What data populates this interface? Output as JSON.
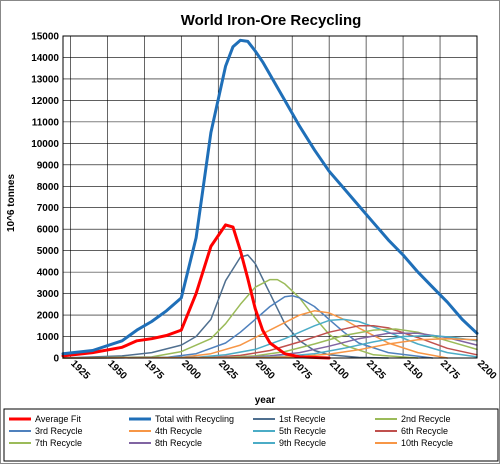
{
  "chart_data": {
    "type": "line",
    "title": "World Iron-Ore Recycling",
    "xlabel": "year",
    "ylabel": "10^6 tonnes",
    "xlim": [
      1920,
      2200
    ],
    "ylim": [
      0,
      15000
    ],
    "x_ticks": [
      1925,
      1950,
      1975,
      2000,
      2025,
      2050,
      2075,
      2100,
      2125,
      2150,
      2175,
      2200
    ],
    "y_ticks": [
      0,
      1000,
      2000,
      3000,
      4000,
      5000,
      6000,
      7000,
      8000,
      9000,
      10000,
      11000,
      12000,
      13000,
      14000,
      15000
    ],
    "grid": true,
    "legend_position": "bottom",
    "series": [
      {
        "name": "Average Fit",
        "color": "#ff0000",
        "width": 3,
        "x": [
          1920,
          1940,
          1960,
          1970,
          1980,
          1990,
          2000,
          2010,
          2020,
          2030,
          2035,
          2040,
          2045,
          2050,
          2055,
          2060,
          2070,
          2080,
          2100
        ],
        "y": [
          100,
          250,
          500,
          800,
          900,
          1050,
          1300,
          3000,
          5200,
          6200,
          6100,
          5000,
          3700,
          2300,
          1300,
          700,
          200,
          50,
          0
        ]
      },
      {
        "name": "Total with Recycling",
        "color": "#1f6fb8",
        "width": 3,
        "x": [
          1920,
          1940,
          1960,
          1970,
          1980,
          1990,
          2000,
          2010,
          2020,
          2030,
          2035,
          2040,
          2045,
          2050,
          2055,
          2060,
          2070,
          2080,
          2090,
          2100,
          2110,
          2120,
          2130,
          2140,
          2150,
          2160,
          2170,
          2180,
          2190,
          2200
        ],
        "y": [
          200,
          350,
          800,
          1300,
          1700,
          2200,
          2800,
          5600,
          10500,
          13600,
          14500,
          14800,
          14750,
          14300,
          13800,
          13200,
          12000,
          10800,
          9700,
          8700,
          7900,
          7100,
          6300,
          5500,
          4800,
          4000,
          3300,
          2600,
          1800,
          1150
        ]
      },
      {
        "name": "1st Recycle",
        "color": "#4f6f8f",
        "width": 1.5,
        "x": [
          1920,
          1960,
          1980,
          2000,
          2010,
          2020,
          2030,
          2040,
          2045,
          2050,
          2060,
          2070,
          2080,
          2090,
          2100,
          2120,
          2140
        ],
        "y": [
          0,
          100,
          250,
          600,
          1000,
          1800,
          3600,
          4700,
          4800,
          4400,
          3000,
          1600,
          800,
          350,
          150,
          30,
          0
        ]
      },
      {
        "name": "2nd Recycle",
        "color": "#9bbb59",
        "width": 1.5,
        "x": [
          1920,
          1980,
          2000,
          2020,
          2030,
          2040,
          2050,
          2060,
          2065,
          2070,
          2080,
          2090,
          2100,
          2110,
          2130,
          2160
        ],
        "y": [
          0,
          50,
          300,
          900,
          1600,
          2500,
          3300,
          3650,
          3650,
          3450,
          2800,
          1900,
          1100,
          600,
          150,
          0
        ]
      },
      {
        "name": "3rd Recycle",
        "color": "#4f81bd",
        "width": 1.5,
        "x": [
          1920,
          1990,
          2010,
          2030,
          2040,
          2050,
          2060,
          2070,
          2075,
          2080,
          2090,
          2100,
          2110,
          2120,
          2140,
          2170
        ],
        "y": [
          0,
          30,
          200,
          700,
          1200,
          1800,
          2400,
          2850,
          2900,
          2800,
          2400,
          1800,
          1200,
          700,
          250,
          0
        ]
      },
      {
        "name": "4th Recycle",
        "color": "#f79646",
        "width": 1.5,
        "x": [
          1920,
          2000,
          2020,
          2040,
          2060,
          2080,
          2090,
          2100,
          2110,
          2120,
          2140,
          2160,
          2180
        ],
        "y": [
          0,
          30,
          200,
          600,
          1300,
          2000,
          2200,
          2100,
          1800,
          1400,
          700,
          250,
          0
        ]
      },
      {
        "name": "5th Recycle",
        "color": "#4bacc6",
        "width": 1.5,
        "x": [
          1920,
          2010,
          2030,
          2050,
          2070,
          2090,
          2100,
          2110,
          2120,
          2140,
          2160,
          2180,
          2200
        ],
        "y": [
          0,
          30,
          150,
          400,
          900,
          1500,
          1750,
          1800,
          1700,
          1200,
          650,
          250,
          50
        ]
      },
      {
        "name": "6th Recycle",
        "color": "#c0504d",
        "width": 1.5,
        "x": [
          1920,
          2020,
          2040,
          2060,
          2080,
          2100,
          2120,
          2130,
          2140,
          2160,
          2180,
          2200
        ],
        "y": [
          0,
          30,
          120,
          350,
          750,
          1200,
          1500,
          1500,
          1400,
          950,
          450,
          150
        ]
      },
      {
        "name": "7th Recycle",
        "color": "#9bbb59",
        "width": 1.5,
        "x": [
          1920,
          2030,
          2050,
          2070,
          2090,
          2110,
          2130,
          2145,
          2160,
          2180,
          2200
        ],
        "y": [
          0,
          30,
          100,
          300,
          650,
          1050,
          1300,
          1350,
          1200,
          800,
          400
        ]
      },
      {
        "name": "8th Recycle",
        "color": "#8064a2",
        "width": 1.5,
        "x": [
          1920,
          2040,
          2060,
          2080,
          2100,
          2120,
          2140,
          2160,
          2180,
          2200
        ],
        "y": [
          0,
          30,
          100,
          250,
          550,
          900,
          1150,
          1150,
          950,
          600
        ]
      },
      {
        "name": "9th Recycle",
        "color": "#4bacc6",
        "width": 1.5,
        "x": [
          1920,
          2050,
          2070,
          2090,
          2110,
          2130,
          2150,
          2170,
          2185,
          2200
        ],
        "y": [
          0,
          30,
          80,
          200,
          450,
          750,
          1000,
          1050,
          950,
          800
        ]
      },
      {
        "name": "10th Recycle",
        "color": "#f79646",
        "width": 1.5,
        "x": [
          1920,
          2060,
          2080,
          2100,
          2120,
          2140,
          2160,
          2180,
          2200
        ],
        "y": [
          0,
          30,
          70,
          180,
          380,
          650,
          850,
          900,
          850
        ]
      }
    ]
  }
}
